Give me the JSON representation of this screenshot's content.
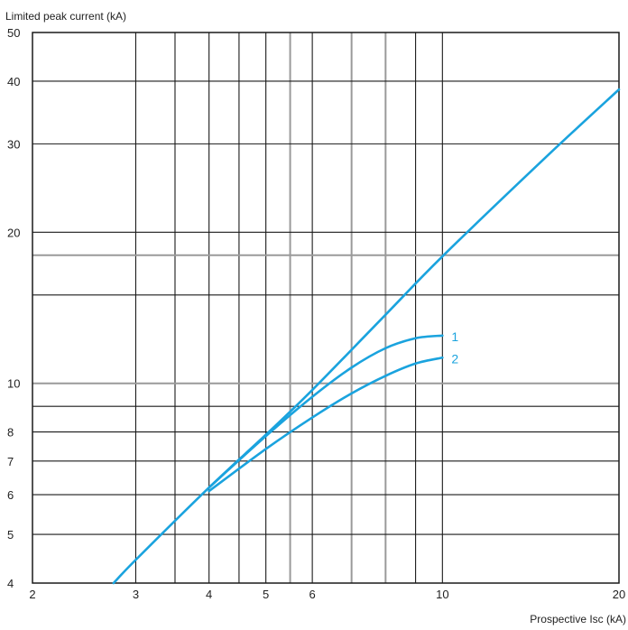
{
  "chart_data": {
    "type": "line",
    "title": "",
    "xlabel": "Prospective Isc (kA)",
    "ylabel": "Limited peak current (kA)",
    "x_scale": "log",
    "y_scale": "log",
    "xlim": [
      2,
      20
    ],
    "ylim": [
      4,
      50
    ],
    "x_ticks": [
      {
        "value": 2,
        "label": "2"
      },
      {
        "value": 3,
        "label": "3"
      },
      {
        "value": 4,
        "label": "4"
      },
      {
        "value": 5,
        "label": "5"
      },
      {
        "value": 6,
        "label": "6"
      },
      {
        "value": 10,
        "label": "10"
      },
      {
        "value": 20,
        "label": "20"
      }
    ],
    "y_ticks": [
      {
        "value": 4,
        "label": "4"
      },
      {
        "value": 5,
        "label": "5"
      },
      {
        "value": 6,
        "label": "6"
      },
      {
        "value": 7,
        "label": "7"
      },
      {
        "value": 8,
        "label": "8"
      },
      {
        "value": 10,
        "label": "10"
      },
      {
        "value": 20,
        "label": "20"
      },
      {
        "value": 30,
        "label": "30"
      },
      {
        "value": 40,
        "label": "40"
      },
      {
        "value": 50,
        "label": "50"
      }
    ],
    "x_grid": [
      {
        "value": 3,
        "color": "#1a1a1a"
      },
      {
        "value": 3.5,
        "color": "#1a1a1a"
      },
      {
        "value": 4,
        "color": "#1a1a1a"
      },
      {
        "value": 4.5,
        "color": "#1a1a1a"
      },
      {
        "value": 5,
        "color": "#1a1a1a"
      },
      {
        "value": 5.5,
        "color": "#9a9a9a"
      },
      {
        "value": 6,
        "color": "#1a1a1a"
      },
      {
        "value": 7,
        "color": "#9a9a9a"
      },
      {
        "value": 8,
        "color": "#9a9a9a"
      },
      {
        "value": 9,
        "color": "#1a1a1a"
      },
      {
        "value": 10,
        "color": "#1a1a1a"
      }
    ],
    "y_grid": [
      {
        "value": 5,
        "color": "#1a1a1a"
      },
      {
        "value": 6,
        "color": "#1a1a1a"
      },
      {
        "value": 7,
        "color": "#1a1a1a"
      },
      {
        "value": 8,
        "color": "#1a1a1a"
      },
      {
        "value": 9,
        "color": "#1a1a1a"
      },
      {
        "value": 10,
        "color": "#9a9a9a"
      },
      {
        "value": 15,
        "color": "#1a1a1a"
      },
      {
        "value": 18,
        "color": "#9a9a9a"
      },
      {
        "value": 20,
        "color": "#1a1a1a"
      },
      {
        "value": 30,
        "color": "#1a1a1a"
      },
      {
        "value": 40,
        "color": "#1a1a1a"
      }
    ],
    "grid": true,
    "line_color": "#1aa3de",
    "series": [
      {
        "name": "",
        "x": [
          2.75,
          3,
          4,
          5,
          6,
          8,
          10,
          15,
          20
        ],
        "y": [
          4,
          4.45,
          6.2,
          7.9,
          9.7,
          13.7,
          17.9,
          28.2,
          38.5
        ]
      },
      {
        "name": "1",
        "x": [
          4,
          5,
          6,
          7,
          8,
          9,
          10
        ],
        "y": [
          6.2,
          7.85,
          9.4,
          10.75,
          11.75,
          12.3,
          12.45
        ]
      },
      {
        "name": "2",
        "x": [
          4,
          5,
          6,
          7,
          8,
          9,
          10
        ],
        "y": [
          6.1,
          7.4,
          8.55,
          9.55,
          10.35,
          10.95,
          11.25
        ]
      }
    ]
  }
}
